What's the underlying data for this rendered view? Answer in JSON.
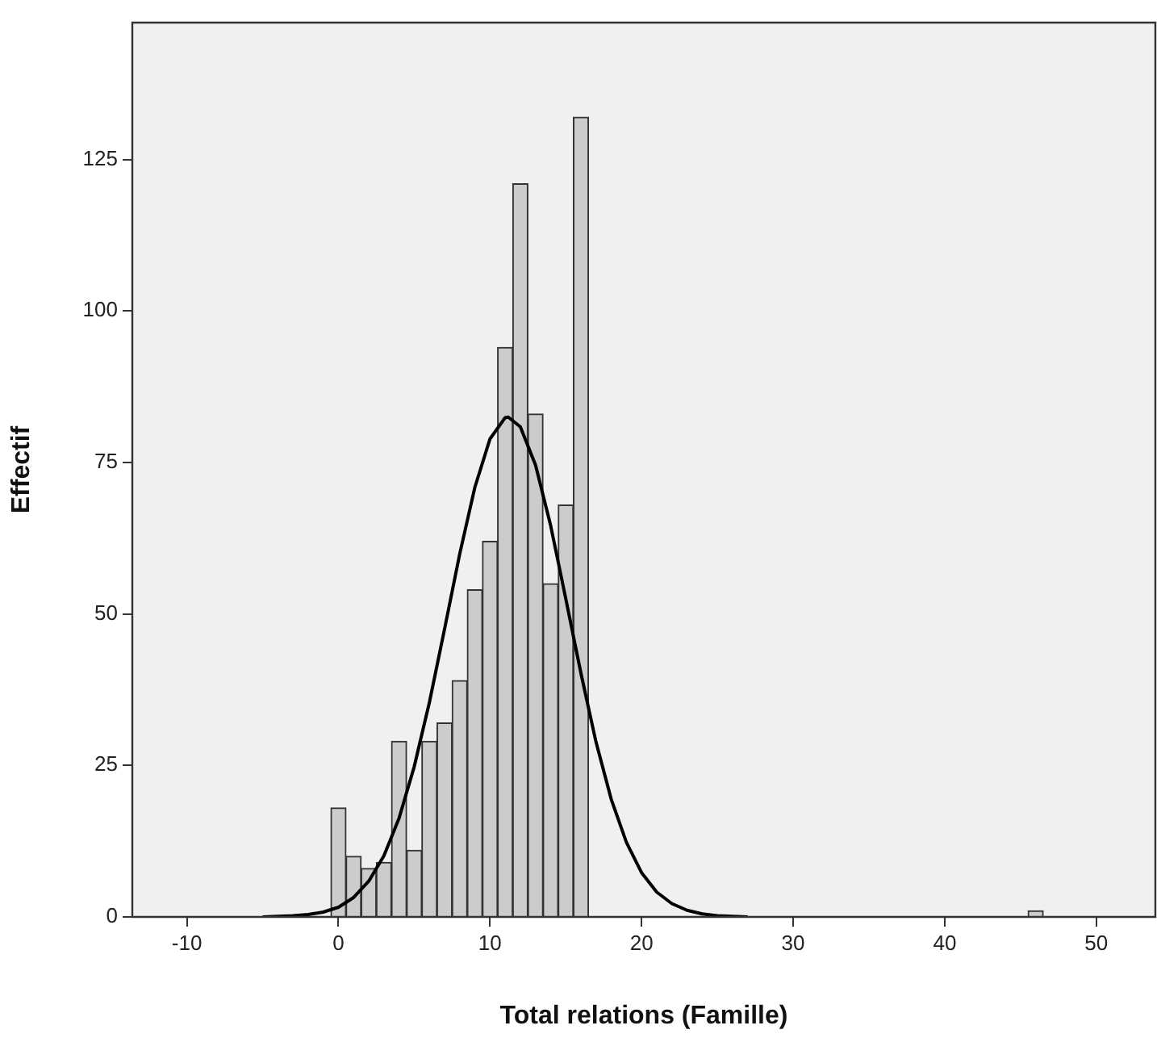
{
  "chart_data": {
    "type": "histogram",
    "xlabel": "Total relations (Famille)",
    "ylabel": "Effectif",
    "bins": [
      -0.5,
      0.5,
      1.5,
      2.5,
      3.5,
      4.5,
      5.5,
      6.5,
      7.5,
      8.5,
      9.5,
      10.5,
      11.5,
      12.5,
      13.5,
      14.5,
      15.5,
      16.5,
      17.5,
      18.5,
      19.5,
      20.5,
      21.5,
      22.5,
      23.5,
      24.5,
      25.5,
      26.5,
      27.5,
      28.5,
      29.5,
      30.5,
      31.5,
      32.5,
      33.5,
      34.5,
      35.5,
      36.5,
      37.5,
      38.5,
      39.5,
      40.5,
      41.5,
      42.5,
      43.5,
      44.5,
      45.5,
      46.5
    ],
    "values": [
      18,
      10,
      8,
      9,
      29,
      11,
      29,
      32,
      39,
      54,
      62,
      94,
      121,
      83,
      55,
      68,
      132,
      0,
      0,
      0,
      0,
      0,
      0,
      0,
      0,
      0,
      0,
      0,
      0,
      0,
      0,
      0,
      0,
      0,
      0,
      0,
      0,
      0,
      0,
      0,
      0,
      0,
      0,
      0,
      0,
      0,
      1
    ],
    "color": "#cccccc",
    "series": [
      {
        "type": "line",
        "color": "#000000",
        "marker": "none",
        "x": [
          -5,
          -4,
          -3,
          -2,
          -1,
          0,
          1,
          2,
          3,
          4,
          5,
          6,
          7,
          8,
          9,
          10,
          11,
          11.2,
          12,
          13,
          14,
          15,
          16,
          17,
          18,
          19,
          20,
          21,
          22,
          23,
          24,
          25,
          26,
          27
        ],
        "values": [
          0,
          0.1,
          0.2,
          0.4,
          0.8,
          1.6,
          3.2,
          5.9,
          10.1,
          16.3,
          24.8,
          35.4,
          47.5,
          59.9,
          70.9,
          78.9,
          82.4,
          82.5,
          80.9,
          74.6,
          64.6,
          52.5,
          40.2,
          28.8,
          19.4,
          12.3,
          7.3,
          4.1,
          2.2,
          1.1,
          0.5,
          0.2,
          0.1,
          0
        ]
      }
    ],
    "xlim": [
      -13.6,
      53.9
    ],
    "xticks": [
      -10,
      0,
      10,
      20,
      30,
      40,
      50
    ],
    "ylim": [
      0,
      147.6
    ],
    "yticks": [
      0,
      25,
      50,
      75,
      100,
      125
    ],
    "grid": false,
    "legend": false
  }
}
